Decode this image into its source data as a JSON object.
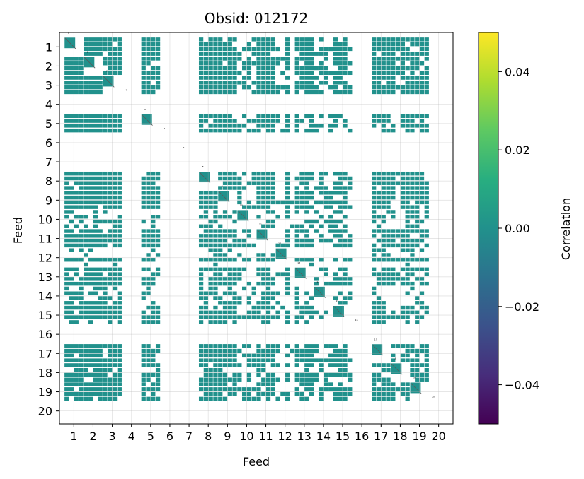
{
  "chart_data": {
    "type": "heatmap",
    "title": "Obsid: 012172",
    "xlabel": "Feed",
    "ylabel": "Feed",
    "x_ticks": [
      "1",
      "2",
      "3",
      "4",
      "5",
      "6",
      "7",
      "8",
      "9",
      "10",
      "11",
      "12",
      "13",
      "14",
      "15",
      "16",
      "17",
      "18",
      "19",
      "20"
    ],
    "y_ticks": [
      "1",
      "2",
      "3",
      "4",
      "5",
      "6",
      "7",
      "8",
      "9",
      "10",
      "11",
      "12",
      "13",
      "14",
      "15",
      "16",
      "17",
      "18",
      "19",
      "20"
    ],
    "feeds": [
      1,
      2,
      3,
      4,
      5,
      6,
      7,
      8,
      9,
      10,
      11,
      12,
      13,
      14,
      15,
      16,
      17,
      18,
      19,
      20
    ],
    "active_feeds": [
      1,
      2,
      3,
      5,
      8,
      9,
      10,
      11,
      12,
      13,
      14,
      15,
      17,
      18,
      19
    ],
    "inactive_feeds": [
      4,
      6,
      7,
      16,
      20
    ],
    "sidebands_per_feed": 4,
    "sideband_sparsity": {
      "10": [
        0.5,
        0.5,
        0.5,
        0.5
      ],
      "12": [
        0.3,
        0.2,
        0.9,
        0.2
      ],
      "14": [
        0.4,
        0.6,
        0.5,
        0.6
      ],
      "18": [
        0.9,
        0.5,
        0.9,
        0.9
      ],
      "13": [
        0.9,
        0.7,
        0.9,
        0.9
      ],
      "15": [
        0.9,
        0.9,
        0.9,
        0.6
      ],
      "5": [
        0.9,
        0.9,
        0.9,
        0.8
      ],
      "19": [
        0.9,
        0.9,
        0.9,
        0.8
      ]
    },
    "fill_value": 0.0,
    "fill_color": "#21918c",
    "diagonal_color": "#5a5a5a",
    "grid": true,
    "colorbar": {
      "label": "Correlation",
      "vmin": -0.05,
      "vmax": 0.05,
      "ticks": [
        -0.04,
        -0.02,
        0.0,
        0.02,
        0.04
      ],
      "tick_labels": [
        "−0.04",
        "−0.02",
        "0.00",
        "0.02",
        "0.04"
      ],
      "colormap": "viridis",
      "colors": [
        "#440154",
        "#472d7b",
        "#3b528b",
        "#2c728e",
        "#21918c",
        "#28ae80",
        "#5ec962",
        "#addc30",
        "#fde725"
      ]
    }
  }
}
